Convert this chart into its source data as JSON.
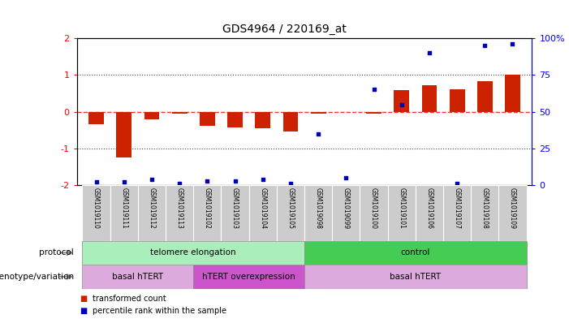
{
  "title": "GDS4964 / 220169_at",
  "samples": [
    "GSM1019110",
    "GSM1019111",
    "GSM1019112",
    "GSM1019113",
    "GSM1019102",
    "GSM1019103",
    "GSM1019104",
    "GSM1019105",
    "GSM1019098",
    "GSM1019099",
    "GSM1019100",
    "GSM1019101",
    "GSM1019106",
    "GSM1019107",
    "GSM1019108",
    "GSM1019109"
  ],
  "transformed_count": [
    -0.35,
    -1.25,
    -0.22,
    -0.05,
    -0.38,
    -0.42,
    -0.45,
    -0.55,
    -0.05,
    0.0,
    -0.05,
    0.58,
    0.72,
    0.62,
    0.82,
    1.0
  ],
  "percentile_rank": [
    2,
    2,
    4,
    1,
    3,
    3,
    4,
    1,
    35,
    5,
    65,
    55,
    90,
    1,
    95,
    96
  ],
  "ylim_left": [
    -2,
    2
  ],
  "ylim_right": [
    0,
    100
  ],
  "yticks_left": [
    -2,
    -1,
    0,
    1,
    2
  ],
  "yticks_right": [
    0,
    25,
    50,
    75,
    100
  ],
  "ytick_labels_right": [
    "0",
    "25",
    "50",
    "75",
    "100%"
  ],
  "bar_color": "#cc2200",
  "dot_color": "#0000bb",
  "zero_line_color": "#ff3333",
  "dotted_line_color": "#444444",
  "protocol_groups": [
    {
      "label": "telomere elongation",
      "start": 0,
      "end": 8,
      "color": "#aaeebb"
    },
    {
      "label": "control",
      "start": 8,
      "end": 16,
      "color": "#44cc55"
    }
  ],
  "genotype_groups": [
    {
      "label": "basal hTERT",
      "start": 0,
      "end": 4,
      "color": "#ddaadd"
    },
    {
      "label": "hTERT overexpression",
      "start": 4,
      "end": 8,
      "color": "#cc55cc"
    },
    {
      "label": "basal hTERT",
      "start": 8,
      "end": 16,
      "color": "#ddaadd"
    }
  ],
  "sample_bg_color": "#cccccc",
  "legend_red_label": "transformed count",
  "legend_blue_label": "percentile rank within the sample",
  "protocol_label": "protocol",
  "genotype_label": "genotype/variation"
}
